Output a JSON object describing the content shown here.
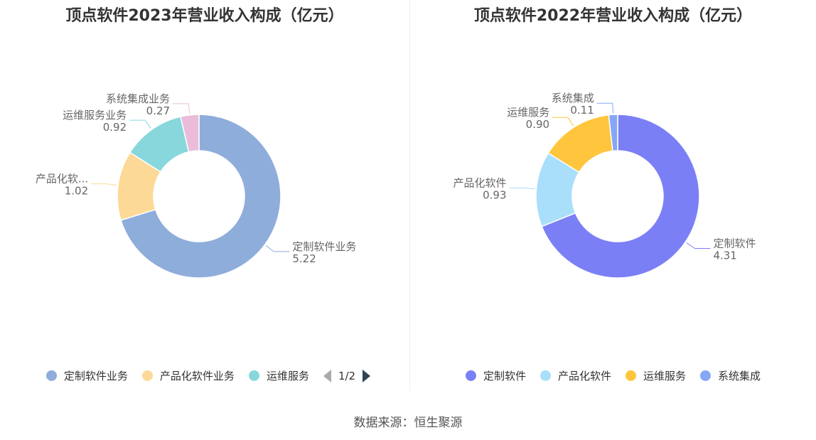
{
  "chart_data": [
    {
      "type": "pie",
      "variant": "donut",
      "title": "顶点软件2023年营业收入构成（亿元）",
      "slices": [
        {
          "name": "定制软件业务",
          "label": "定制软件业务",
          "value": 5.22,
          "value_label": "5.22",
          "color": "#8eaddb"
        },
        {
          "name": "产品化软件业务",
          "label": "产品化软...",
          "value": 1.02,
          "value_label": "1.02",
          "color": "#fcd996"
        },
        {
          "name": "运维服务业务",
          "label": "运维服务业务",
          "value": 0.92,
          "value_label": "0.92",
          "color": "#87d7dc"
        },
        {
          "name": "系统集成业务",
          "label": "系统集成业务",
          "value": 0.27,
          "value_label": "0.27",
          "color": "#ebbcd9"
        }
      ],
      "legend": {
        "placement": "bottom",
        "visible_items": [
          "定制软件业务",
          "产品化软件业务",
          "运维服务"
        ],
        "pager": "1/2"
      }
    },
    {
      "type": "pie",
      "variant": "donut",
      "title": "顶点软件2022年营业收入构成（亿元）",
      "slices": [
        {
          "name": "定制软件",
          "label": "定制软件",
          "value": 4.31,
          "value_label": "4.31",
          "color": "#7b7ff6"
        },
        {
          "name": "产品化软件",
          "label": "产品化软件",
          "value": 0.93,
          "value_label": "0.93",
          "color": "#a9dffa"
        },
        {
          "name": "运维服务",
          "label": "运维服务",
          "value": 0.9,
          "value_label": "0.90",
          "color": "#ffc53d"
        },
        {
          "name": "系统集成",
          "label": "系统集成",
          "value": 0.11,
          "value_label": "0.11",
          "color": "#86a7f5"
        }
      ],
      "legend": {
        "placement": "bottom",
        "visible_items": [
          "定制软件",
          "产品化软件",
          "运维服务",
          "系统集成"
        ]
      }
    }
  ],
  "source": "数据来源：恒生聚源"
}
